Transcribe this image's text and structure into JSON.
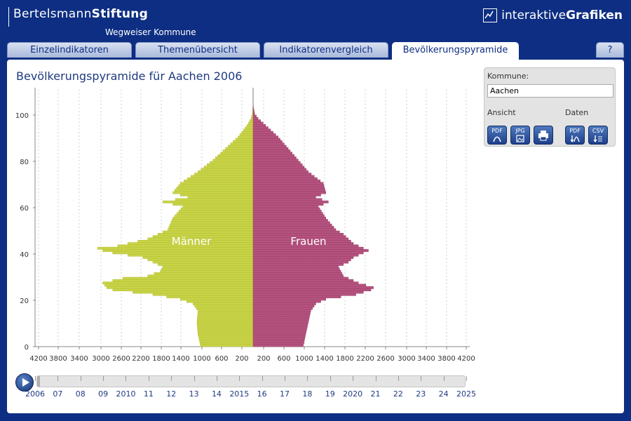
{
  "header": {
    "brand_light": "Bertelsmann",
    "brand_bold": "Stiftung",
    "subtitle": "Wegweiser Kommune",
    "right_light": "interaktive",
    "right_bold": "Grafiken"
  },
  "tabs": [
    {
      "label": "Einzelindikatoren"
    },
    {
      "label": "Themenübersicht"
    },
    {
      "label": "Indikatorenvergleich"
    },
    {
      "label": "Bevölkerungspyramide"
    },
    {
      "label": "?"
    }
  ],
  "page_title": "Bevölkerungspyramide für Aachen 2006",
  "side": {
    "kommune_label": "Kommune:",
    "kommune_value": "Aachen",
    "ansicht_label": "Ansicht",
    "daten_label": "Daten",
    "buttons": [
      {
        "label": "PDF",
        "icon": "pdf-icon"
      },
      {
        "label": "JPG",
        "icon": "jpg-icon"
      },
      {
        "label": "",
        "icon": "print-icon"
      },
      {
        "label": "PDF",
        "icon": "pdf-download-icon"
      },
      {
        "label": "CSV",
        "icon": "csv-download-icon"
      }
    ]
  },
  "chart_data": {
    "type": "bar",
    "title": "Bevölkerungspyramide für Aachen 2006",
    "orientation": "horizontal",
    "xlim": [
      -4200,
      4200
    ],
    "ylim": [
      0,
      110
    ],
    "x_tick_labels": [
      "4200",
      "3800",
      "3400",
      "3000",
      "2600",
      "2200",
      "1800",
      "1400",
      "1000",
      "600",
      "200",
      "200",
      "600",
      "1000",
      "1400",
      "1800",
      "2200",
      "2600",
      "3000",
      "3400",
      "3800",
      "4200"
    ],
    "y_ticks": [
      0,
      20,
      40,
      60,
      80,
      100
    ],
    "grid": "vertical",
    "colors": {
      "men": "#c8d348",
      "women": "#b5537f"
    },
    "series": [
      {
        "name": "Männer",
        "ages": [
          0,
          5,
          10,
          15,
          18,
          20,
          22,
          24,
          25,
          27,
          29,
          30,
          32,
          34,
          36,
          38,
          40,
          41,
          42,
          43,
          44,
          46,
          48,
          50,
          55,
          60,
          62,
          64,
          66,
          70,
          75,
          80,
          85,
          90,
          95,
          98,
          100,
          103
        ],
        "values": [
          1050,
          1100,
          1120,
          1100,
          1200,
          1450,
          2000,
          2800,
          2920,
          3000,
          2600,
          2100,
          1850,
          1800,
          2000,
          2200,
          2800,
          3000,
          3100,
          2700,
          2500,
          2100,
          1900,
          1700,
          1600,
          1400,
          1800,
          1300,
          1600,
          1450,
          1100,
          800,
          550,
          300,
          120,
          40,
          15,
          5
        ]
      },
      {
        "name": "Frauen",
        "ages": [
          0,
          5,
          10,
          15,
          18,
          20,
          22,
          24,
          25,
          27,
          29,
          30,
          32,
          34,
          36,
          38,
          40,
          41,
          42,
          43,
          44,
          46,
          48,
          50,
          55,
          60,
          62,
          64,
          66,
          70,
          75,
          80,
          85,
          90,
          95,
          98,
          100,
          103
        ],
        "values": [
          1000,
          1050,
          1100,
          1150,
          1250,
          1450,
          2050,
          2350,
          2400,
          2100,
          1900,
          1800,
          1750,
          1700,
          1900,
          2000,
          2200,
          2300,
          2200,
          2100,
          2000,
          1900,
          1800,
          1650,
          1450,
          1300,
          1500,
          1250,
          1450,
          1400,
          1100,
          900,
          700,
          500,
          250,
          100,
          30,
          5
        ]
      }
    ],
    "timeline": {
      "labels": [
        "2006",
        "07",
        "08",
        "09",
        "2010",
        "11",
        "12",
        "13",
        "14",
        "2015",
        "16",
        "17",
        "18",
        "19",
        "2020",
        "21",
        "22",
        "23",
        "24",
        "2025"
      ],
      "selected": "2006"
    }
  }
}
